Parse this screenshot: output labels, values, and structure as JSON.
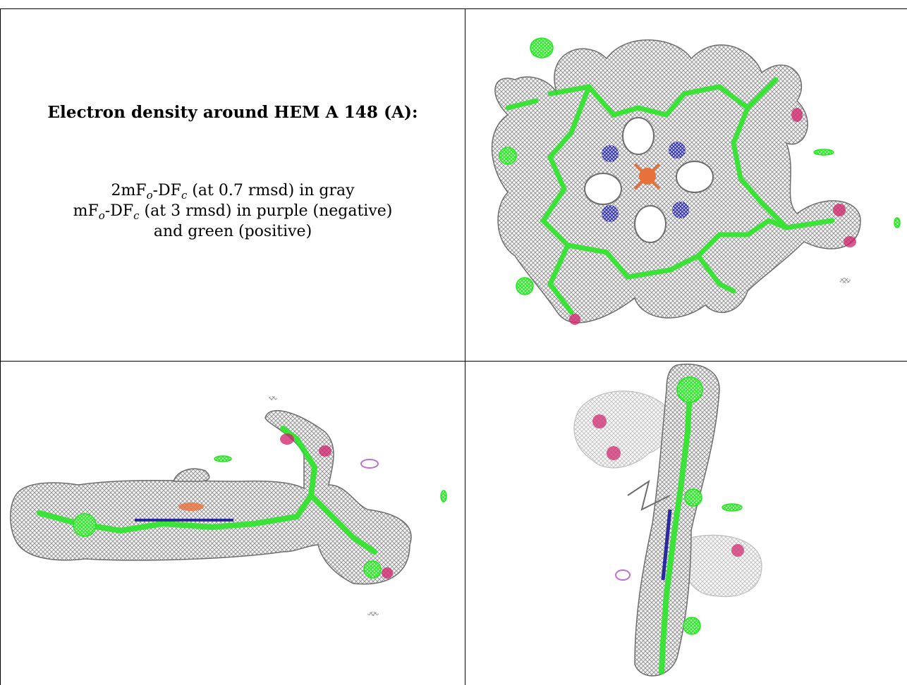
{
  "caption": {
    "title": "Electron density around HEM A 148 (A):",
    "line1_prefix": "2mF",
    "line1_mid": "-DF",
    "line1_suffix": " (at 0.7 rmsd) in gray",
    "line2_prefix": "mF",
    "line2_mid": "-DF",
    "line2_suffix": " (at 3 rmsd) in purple (negative)",
    "line3": "and green (positive)",
    "sub_o": "o",
    "sub_c": "c"
  },
  "colors": {
    "mesh_gray": "#8c8c8c",
    "mesh_green": "#22e61e",
    "mesh_purple": "#c070d0",
    "atom_red": "#d0206a",
    "atom_blue": "#2a2aa0",
    "iron_orange": "#e8703a"
  },
  "panels": [
    {
      "name": "view-top",
      "view": "face-on"
    },
    {
      "name": "view-side",
      "view": "edge-on horizontal"
    },
    {
      "name": "view-end",
      "view": "edge-on vertical"
    }
  ]
}
